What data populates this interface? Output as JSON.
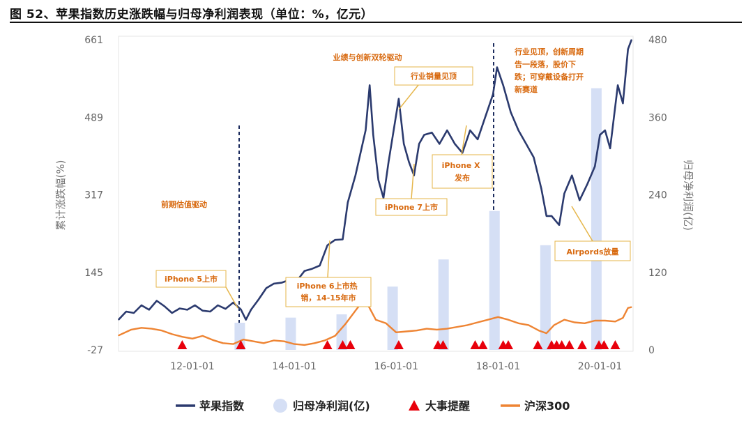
{
  "title": "图 52、苹果指数历史涨跌幅与归母净利润表现（单位：%，亿元）",
  "chart_data": {
    "type": "line",
    "ylabel_left": "累计涨跌幅(%)",
    "ylabel_right": "归母净利润(亿)",
    "y_left_ticks": [
      -27,
      145,
      317,
      489,
      661
    ],
    "y_right_ticks": [
      0,
      120,
      240,
      360,
      480
    ],
    "ylim_left": [
      -27,
      661
    ],
    "ylim_right": [
      0,
      480
    ],
    "xlim": [
      2010.55,
      2020.65
    ],
    "x_ticks": [
      {
        "x": 2012.0,
        "label": "12-01-01"
      },
      {
        "x": 2014.0,
        "label": "14-01-01"
      },
      {
        "x": 2016.0,
        "label": "16-01-01"
      },
      {
        "x": 2018.0,
        "label": "18-01-01"
      },
      {
        "x": 2020.0,
        "label": "20-01-01"
      }
    ],
    "colors": {
      "apple": "#2b3a6e",
      "profit": "#d5dff5",
      "events": "#e8000b",
      "hs300": "#ee8433",
      "annotation": "#d86a10"
    },
    "series": [
      {
        "name": "苹果指数",
        "kind": "line",
        "axis": "left",
        "points": [
          [
            2010.55,
            40
          ],
          [
            2010.7,
            58
          ],
          [
            2010.85,
            55
          ],
          [
            2011.0,
            72
          ],
          [
            2011.15,
            62
          ],
          [
            2011.3,
            82
          ],
          [
            2011.45,
            70
          ],
          [
            2011.6,
            55
          ],
          [
            2011.75,
            65
          ],
          [
            2011.9,
            62
          ],
          [
            2012.05,
            72
          ],
          [
            2012.2,
            60
          ],
          [
            2012.35,
            58
          ],
          [
            2012.5,
            72
          ],
          [
            2012.65,
            64
          ],
          [
            2012.8,
            78
          ],
          [
            2012.95,
            63
          ],
          [
            2013.05,
            40
          ],
          [
            2013.15,
            62
          ],
          [
            2013.3,
            85
          ],
          [
            2013.45,
            110
          ],
          [
            2013.6,
            120
          ],
          [
            2013.75,
            122
          ],
          [
            2013.9,
            128
          ],
          [
            2014.05,
            126
          ],
          [
            2014.2,
            148
          ],
          [
            2014.35,
            153
          ],
          [
            2014.5,
            160
          ],
          [
            2014.65,
            205
          ],
          [
            2014.8,
            217
          ],
          [
            2014.95,
            218
          ],
          [
            2015.05,
            300
          ],
          [
            2015.2,
            360
          ],
          [
            2015.3,
            410
          ],
          [
            2015.4,
            460
          ],
          [
            2015.48,
            560
          ],
          [
            2015.55,
            450
          ],
          [
            2015.65,
            350
          ],
          [
            2015.75,
            310
          ],
          [
            2015.85,
            390
          ],
          [
            2015.95,
            460
          ],
          [
            2016.05,
            530
          ],
          [
            2016.15,
            430
          ],
          [
            2016.25,
            390
          ],
          [
            2016.35,
            360
          ],
          [
            2016.45,
            430
          ],
          [
            2016.55,
            450
          ],
          [
            2016.7,
            455
          ],
          [
            2016.85,
            430
          ],
          [
            2017.0,
            460
          ],
          [
            2017.15,
            430
          ],
          [
            2017.3,
            410
          ],
          [
            2017.45,
            460
          ],
          [
            2017.6,
            440
          ],
          [
            2017.75,
            490
          ],
          [
            2017.9,
            540
          ],
          [
            2017.98,
            600
          ],
          [
            2018.1,
            560
          ],
          [
            2018.25,
            500
          ],
          [
            2018.4,
            460
          ],
          [
            2018.55,
            430
          ],
          [
            2018.7,
            400
          ],
          [
            2018.85,
            330
          ],
          [
            2018.95,
            270
          ],
          [
            2019.05,
            270
          ],
          [
            2019.2,
            250
          ],
          [
            2019.3,
            320
          ],
          [
            2019.45,
            360
          ],
          [
            2019.6,
            305
          ],
          [
            2019.75,
            340
          ],
          [
            2019.9,
            380
          ],
          [
            2020.0,
            450
          ],
          [
            2020.1,
            460
          ],
          [
            2020.2,
            420
          ],
          [
            2020.35,
            560
          ],
          [
            2020.45,
            520
          ],
          [
            2020.55,
            640
          ],
          [
            2020.62,
            661
          ]
        ]
      },
      {
        "name": "沪深300",
        "kind": "line",
        "axis": "left",
        "points": [
          [
            2010.55,
            5
          ],
          [
            2010.8,
            18
          ],
          [
            2011.0,
            22
          ],
          [
            2011.2,
            20
          ],
          [
            2011.4,
            16
          ],
          [
            2011.6,
            8
          ],
          [
            2011.8,
            2
          ],
          [
            2012.0,
            -2
          ],
          [
            2012.2,
            4
          ],
          [
            2012.4,
            -5
          ],
          [
            2012.6,
            -12
          ],
          [
            2012.8,
            -14
          ],
          [
            2013.0,
            -4
          ],
          [
            2013.2,
            -8
          ],
          [
            2013.4,
            -12
          ],
          [
            2013.6,
            -6
          ],
          [
            2013.8,
            -8
          ],
          [
            2014.0,
            -14
          ],
          [
            2014.2,
            -16
          ],
          [
            2014.4,
            -12
          ],
          [
            2014.6,
            -6
          ],
          [
            2014.8,
            4
          ],
          [
            2015.0,
            30
          ],
          [
            2015.2,
            60
          ],
          [
            2015.35,
            82
          ],
          [
            2015.45,
            72
          ],
          [
            2015.6,
            40
          ],
          [
            2015.8,
            32
          ],
          [
            2016.0,
            12
          ],
          [
            2016.2,
            14
          ],
          [
            2016.4,
            16
          ],
          [
            2016.6,
            20
          ],
          [
            2016.8,
            18
          ],
          [
            2017.0,
            20
          ],
          [
            2017.2,
            24
          ],
          [
            2017.4,
            28
          ],
          [
            2017.6,
            34
          ],
          [
            2017.8,
            40
          ],
          [
            2018.0,
            46
          ],
          [
            2018.2,
            40
          ],
          [
            2018.4,
            32
          ],
          [
            2018.6,
            28
          ],
          [
            2018.8,
            16
          ],
          [
            2018.95,
            10
          ],
          [
            2019.1,
            28
          ],
          [
            2019.3,
            40
          ],
          [
            2019.5,
            34
          ],
          [
            2019.7,
            32
          ],
          [
            2019.9,
            38
          ],
          [
            2020.1,
            38
          ],
          [
            2020.3,
            36
          ],
          [
            2020.45,
            44
          ],
          [
            2020.55,
            66
          ],
          [
            2020.62,
            68
          ]
        ]
      },
      {
        "name": "归母净利润(亿)",
        "kind": "bar",
        "axis": "right",
        "x": [
          2012.93,
          2013.93,
          2014.93,
          2015.93,
          2016.93,
          2017.93,
          2018.93,
          2019.93
        ],
        "values": [
          42,
          50,
          55,
          98,
          140,
          215,
          162,
          405
        ]
      },
      {
        "name": "大事提醒",
        "kind": "marker",
        "axis": "left",
        "x": [
          2011.8,
          2012.95,
          2014.65,
          2014.95,
          2015.1,
          2016.05,
          2016.82,
          2016.92,
          2017.55,
          2017.7,
          2018.1,
          2018.2,
          2018.78,
          2019.05,
          2019.15,
          2019.25,
          2019.4,
          2019.65,
          2019.98,
          2020.08,
          2020.3
        ],
        "y": -27
      }
    ],
    "annotations": [
      {
        "text": [
          "前期估值驱动"
        ],
        "boxed": false
      },
      {
        "text": [
          "业绩与创新双轮驱动"
        ],
        "boxed": false
      },
      {
        "text": [
          "行业见顶，创新周期",
          "告一段落，股价下",
          "跌；可穿戴设备打开",
          "新赛道"
        ],
        "boxed": false
      },
      {
        "text": [
          "iPhone 5上市"
        ],
        "boxed": true
      },
      {
        "text": [
          "iPhone 6上市热",
          "销，14-15年市"
        ],
        "boxed": true
      },
      {
        "text": [
          "行业销量见顶"
        ],
        "boxed": true
      },
      {
        "text": [
          "iPhone 7上市"
        ],
        "boxed": true
      },
      {
        "text": [
          "iPhone X",
          "发布"
        ],
        "boxed": true
      },
      {
        "text": [
          "Airpords放量"
        ],
        "boxed": true
      }
    ],
    "legend": {
      "position": "bottom",
      "entries": [
        "苹果指数",
        "归母净利润(亿)",
        "大事提醒",
        "沪深300"
      ]
    },
    "grid": false
  }
}
